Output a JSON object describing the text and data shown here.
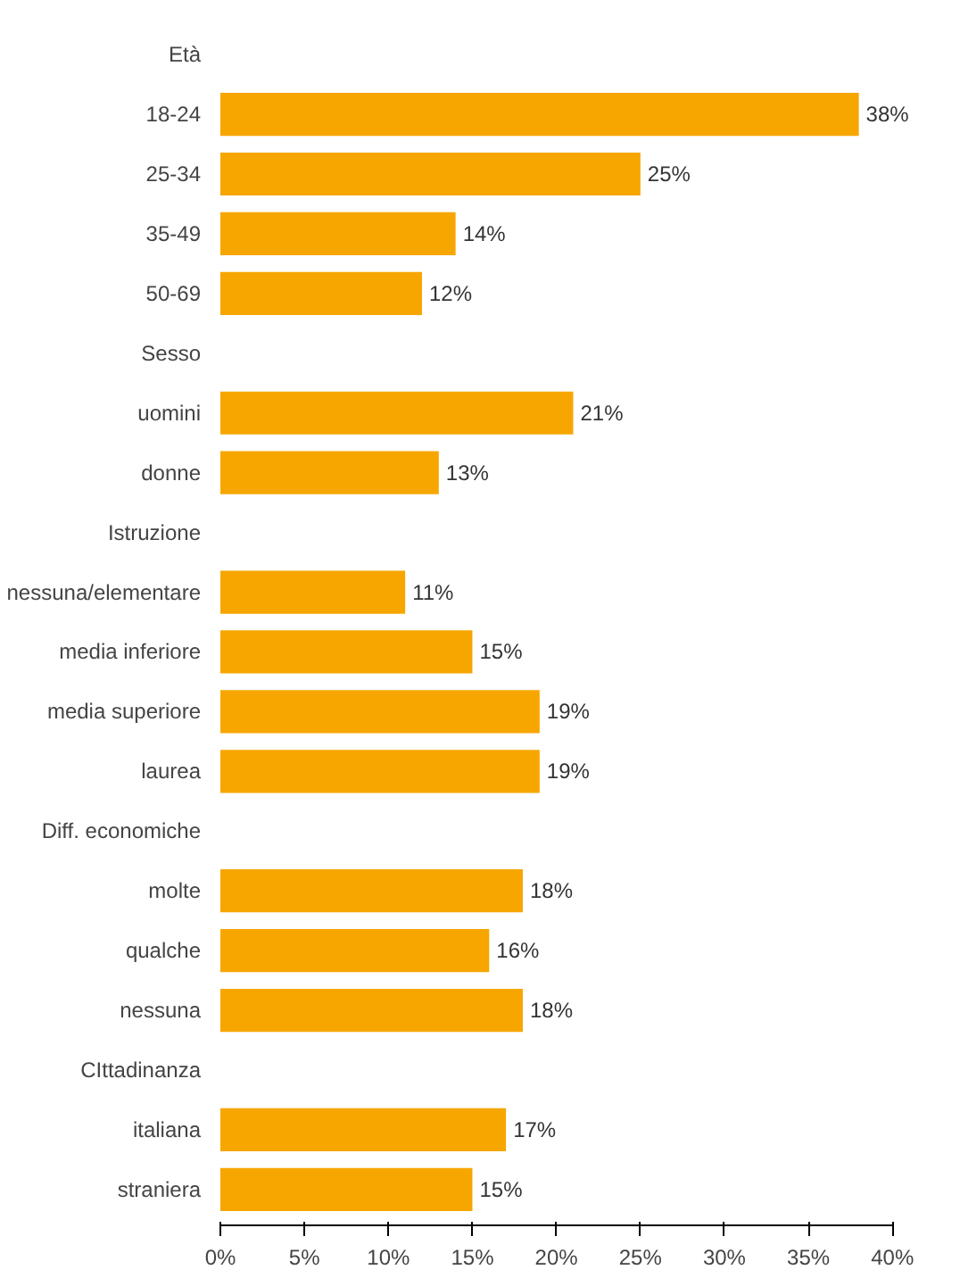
{
  "chart_data": {
    "type": "bar",
    "orientation": "horizontal",
    "color": "#f7a600",
    "categories": [
      "Età",
      "18-24",
      "25-34",
      "35-49",
      "50-69",
      "Sesso",
      "uomini",
      "donne",
      "Istruzione",
      "nessuna/elementare",
      "media inferiore",
      "media superiore",
      "laurea",
      "Diff. economiche",
      "molte",
      "qualche",
      "nessuna",
      "CIttadinanza",
      "italiana",
      "straniera"
    ],
    "values": [
      null,
      38,
      25,
      14,
      12,
      null,
      21,
      13,
      null,
      11,
      15,
      19,
      19,
      null,
      18,
      16,
      18,
      null,
      17,
      15
    ],
    "value_labels": [
      null,
      "38%",
      "25%",
      "14%",
      "12%",
      null,
      "21%",
      "13%",
      null,
      "11%",
      "15%",
      "19%",
      "19%",
      null,
      "18%",
      "16%",
      "18%",
      null,
      "17%",
      "15%"
    ],
    "xlim": [
      0,
      40
    ],
    "xticks": [
      {
        "value": 0,
        "label": "0%"
      },
      {
        "value": 5,
        "label": "5%"
      },
      {
        "value": 10,
        "label": "10%"
      },
      {
        "value": 15,
        "label": "15%"
      },
      {
        "value": 20,
        "label": "20%"
      },
      {
        "value": 25,
        "label": "25%"
      },
      {
        "value": 30,
        "label": "30%"
      },
      {
        "value": 35,
        "label": "35%"
      },
      {
        "value": 40,
        "label": "40%"
      }
    ],
    "grid": false
  }
}
